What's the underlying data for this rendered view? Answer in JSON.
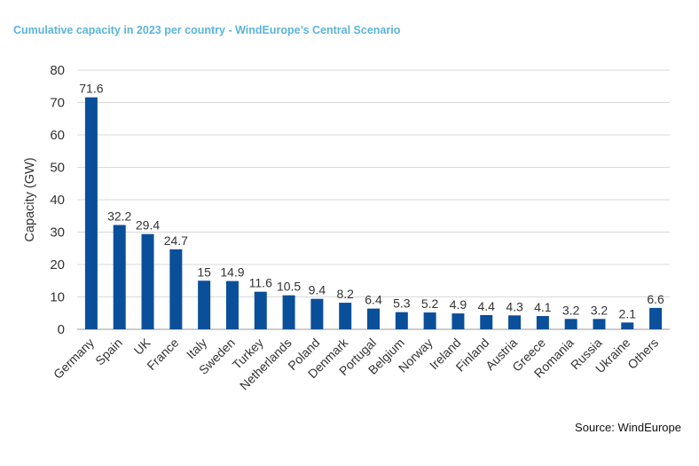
{
  "title": "Cumulative capacity in 2023 per country - WindEurope’s Central Scenario",
  "source": "Source: WindEurope",
  "chart_data": {
    "type": "bar",
    "title": "Cumulative capacity in 2023 per country - WindEurope’s Central Scenario",
    "ylabel": "Capacity (GW)",
    "xlabel": "",
    "ylim": [
      0,
      80
    ],
    "yticks": [
      0,
      10,
      20,
      30,
      40,
      50,
      60,
      70,
      80
    ],
    "grid": true,
    "legend": "none",
    "bar_color": "#0a4f9a",
    "categories": [
      "Germany",
      "Spain",
      "UK",
      "France",
      "Italy",
      "Sweden",
      "Turkey",
      "Netherlands",
      "Poland",
      "Denmark",
      "Portugal",
      "Belgium",
      "Norway",
      "Ireland",
      "Finland",
      "Austria",
      "Greece",
      "Romania",
      "Russia",
      "Ukraine",
      "Others"
    ],
    "values": [
      71.6,
      32.2,
      29.4,
      24.7,
      15,
      14.9,
      11.6,
      10.5,
      9.4,
      8.2,
      6.4,
      5.3,
      5.2,
      4.9,
      4.4,
      4.3,
      4.1,
      3.2,
      3.2,
      2.1,
      6.6
    ],
    "data_labels": [
      "71.6",
      "32.2",
      "29.4",
      "24.7",
      "15",
      "14.9",
      "11.6",
      "10.5",
      "9.4",
      "8.2",
      "6.4",
      "5.3",
      "5.2",
      "4.9",
      "4.4",
      "4.3",
      "4.1",
      "3.2",
      "3.2",
      "2.1",
      "6.6"
    ]
  }
}
